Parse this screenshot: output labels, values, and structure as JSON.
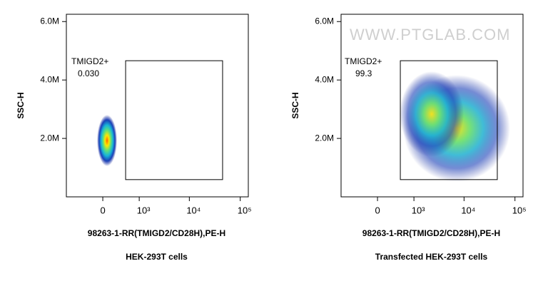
{
  "chart_data": [
    {
      "type": "flow-density",
      "title": "HEK-293T cells",
      "x_label": "98263-1-RR(TMIGD2/CD28H),PE-H",
      "y_label": "SSC-H",
      "xscale": "arcsinh",
      "xlim": [
        -1000,
        130000
      ],
      "ylim": [
        0,
        6250000
      ],
      "xticks": [
        0,
        {
          "value": 1000,
          "label": "10³"
        },
        {
          "value": 10000,
          "label": "10⁴"
        },
        {
          "value": 100000,
          "label": "10⁵"
        }
      ],
      "yticks": [
        {
          "value": 2000000,
          "label": "2.0M"
        },
        {
          "value": 4000000,
          "label": "4.0M"
        },
        {
          "value": 6000000,
          "label": "6.0M"
        }
      ],
      "gate": {
        "name": "TMIGD2+",
        "value": 0.03,
        "value_label": "0.030",
        "x": [
          490,
          45000
        ],
        "y": [
          590000,
          4660000
        ]
      }
    },
    {
      "type": "flow-density",
      "title": "Transfected HEK-293T cells",
      "x_label": "98263-1-RR(TMIGD2/CD28H),PE-H",
      "y_label": "SSC-H",
      "watermark": "WWW.PTGLAB.COM",
      "xscale": "arcsinh",
      "xlim": [
        -1000,
        130000
      ],
      "ylim": [
        0,
        6250000
      ],
      "xticks": [
        0,
        {
          "value": 1000,
          "label": "10³"
        },
        {
          "value": 10000,
          "label": "10⁴"
        },
        {
          "value": 100000,
          "label": "10⁵"
        }
      ],
      "yticks": [
        {
          "value": 2000000,
          "label": "2.0M"
        },
        {
          "value": 4000000,
          "label": "4.0M"
        },
        {
          "value": 6000000,
          "label": "6.0M"
        }
      ],
      "gate": {
        "name": "TMIGD2+",
        "value": 99.3,
        "x": [
          490,
          45000
        ],
        "y": [
          590000,
          4660000
        ]
      }
    }
  ]
}
